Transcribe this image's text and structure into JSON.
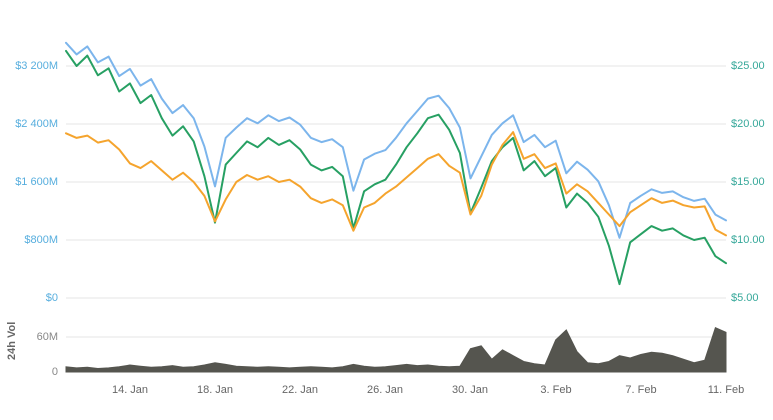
{
  "chart_data": {
    "type": "line",
    "title": "",
    "legend": "none",
    "grid": "horizontal",
    "x_axis": {
      "tick_labels": [
        "14. Jan",
        "18. Jan",
        "22. Jan",
        "26. Jan",
        "30. Jan",
        "3. Feb",
        "7. Feb",
        "11. Feb"
      ],
      "range": [
        "11. Jan",
        "11. Feb"
      ],
      "points_per_day": 2
    },
    "left_axis": {
      "ticks": [
        "$3 200M",
        "$2 400M",
        "$1 600M",
        "$800M",
        "$0"
      ],
      "tick_values": [
        3200,
        2400,
        1600,
        800,
        0
      ],
      "min": 0,
      "max": 3200,
      "unit": "USD millions",
      "color": "#57aede"
    },
    "right_axis": {
      "ticks": [
        "$25.00",
        "$20.00",
        "$15.00",
        "$10.00",
        "$5.00"
      ],
      "tick_values": [
        25,
        20,
        15,
        10,
        5
      ],
      "min": 5,
      "max": 25,
      "unit": "USD",
      "color": "#36a89a"
    },
    "volume_axis": {
      "title": "24h Vol",
      "ticks": [
        "60M",
        "0"
      ],
      "tick_values": [
        60,
        0
      ],
      "min": 0,
      "max": 60,
      "unit": "USD millions"
    },
    "series": [
      {
        "name": "blue",
        "color": "#7cb5ec",
        "axis": "left",
        "values": [
          3520,
          3360,
          3470,
          3250,
          3330,
          3060,
          3160,
          2930,
          3020,
          2750,
          2550,
          2660,
          2480,
          2090,
          1540,
          2210,
          2350,
          2480,
          2410,
          2520,
          2440,
          2490,
          2390,
          2210,
          2150,
          2190,
          2080,
          1480,
          1910,
          1990,
          2040,
          2210,
          2410,
          2580,
          2750,
          2790,
          2620,
          2350,
          1650,
          1950,
          2250,
          2410,
          2520,
          2150,
          2250,
          2080,
          2170,
          1720,
          1880,
          1770,
          1610,
          1280,
          830,
          1310,
          1410,
          1500,
          1450,
          1470,
          1390,
          1340,
          1370,
          1150,
          1070
        ]
      },
      {
        "name": "green",
        "color": "#27a063",
        "axis": "right",
        "values": [
          26.3,
          25.0,
          25.9,
          24.2,
          24.8,
          22.8,
          23.5,
          21.8,
          22.5,
          20.5,
          19.0,
          19.8,
          18.5,
          15.5,
          11.5,
          16.5,
          17.5,
          18.5,
          18.0,
          18.8,
          18.2,
          18.6,
          17.8,
          16.5,
          16.0,
          16.3,
          15.5,
          11.0,
          14.2,
          14.8,
          15.2,
          16.5,
          18.0,
          19.2,
          20.5,
          20.8,
          19.5,
          17.5,
          12.3,
          14.5,
          16.8,
          18.0,
          18.8,
          16.0,
          16.8,
          15.5,
          16.2,
          12.8,
          14.0,
          13.2,
          12.0,
          9.5,
          6.2,
          9.8,
          10.5,
          11.2,
          10.8,
          11.0,
          10.4,
          10.0,
          10.2,
          8.6,
          8.0
        ]
      },
      {
        "name": "orange",
        "color": "#f5a42d",
        "axis": "right",
        "values": [
          19.2,
          18.8,
          19.0,
          18.4,
          18.6,
          17.8,
          16.6,
          16.2,
          16.8,
          16.0,
          15.2,
          15.8,
          15.0,
          13.8,
          11.6,
          13.5,
          15.0,
          15.6,
          15.2,
          15.5,
          15.0,
          15.2,
          14.6,
          13.6,
          13.2,
          13.5,
          13.0,
          10.8,
          12.8,
          13.2,
          14.0,
          14.6,
          15.4,
          16.2,
          17.0,
          17.4,
          16.4,
          15.8,
          12.2,
          13.8,
          16.5,
          18.2,
          19.3,
          17.0,
          17.4,
          16.2,
          16.6,
          14.0,
          14.8,
          14.2,
          13.2,
          12.2,
          11.2,
          12.4,
          13.0,
          13.6,
          13.2,
          13.4,
          13.0,
          12.8,
          12.9,
          10.9,
          10.4
        ]
      }
    ],
    "volume_series": {
      "name": "24h-volume",
      "color": "#55554f",
      "axis": "volume",
      "values": [
        9,
        7,
        8,
        6,
        7,
        9,
        12,
        10,
        8,
        9,
        11,
        8,
        9,
        12,
        16,
        13,
        10,
        9,
        8,
        9,
        8,
        7,
        8,
        9,
        8,
        7,
        9,
        13,
        10,
        8,
        9,
        11,
        13,
        11,
        12,
        10,
        9,
        10,
        40,
        45,
        22,
        38,
        28,
        18,
        14,
        12,
        55,
        72,
        35,
        16,
        14,
        18,
        28,
        24,
        30,
        34,
        32,
        28,
        22,
        16,
        20,
        76,
        68
      ]
    }
  }
}
